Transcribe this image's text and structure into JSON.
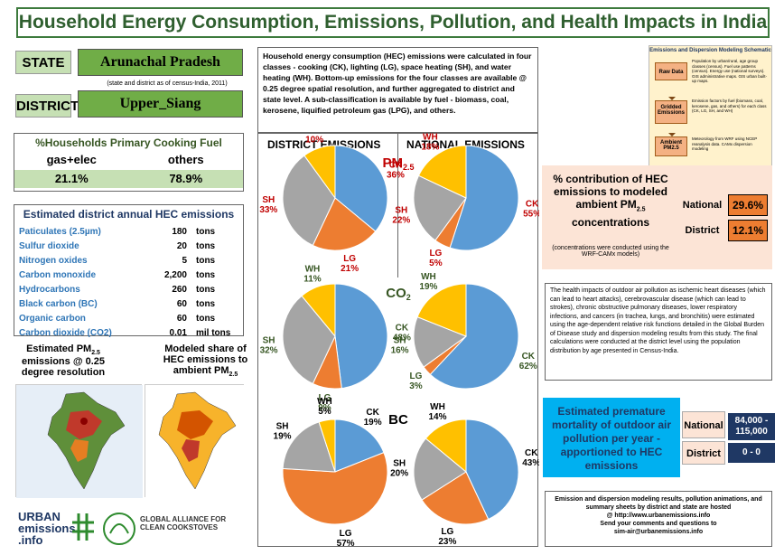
{
  "title": "Household Energy Consumption, Emissions, Pollution, and Health Impacts in India",
  "state_label": "STATE",
  "state_value": "Arunachal Pradesh",
  "state_note": "(state and district as of census-India, 2011)",
  "district_label": "DISTRICT",
  "district_value": "Upper_Siang",
  "intro_text": "Household energy consumption (HEC) emissions were calculated in four classes - cooking (CK), lighting (LG), space heating (SH), and water heating (WH). Bottom-up emissions for the four classes  are available @ 0.25 degree spatial resolution, and further aggregated to district and state level. A sub-classification is available by fuel - biomass, coal, kerosene, liquified petroleum gas (LPG), and others.",
  "cooking_fuel": {
    "title": "%Households Primary Cooking Fuel",
    "col1": "gas+elec",
    "col2": "others",
    "val1": "21.1%",
    "val2": "78.9%"
  },
  "emissions": {
    "title": "Estimated district annual HEC emissions",
    "rows": [
      {
        "name": "Paticulates (2.5µm)",
        "value": "180",
        "unit": "tons"
      },
      {
        "name": "Sulfur dioxide",
        "value": "20",
        "unit": "tons"
      },
      {
        "name": "Nitrogen oxides",
        "value": "5",
        "unit": "tons"
      },
      {
        "name": "Carbon monoxide",
        "value": "2,200",
        "unit": "tons"
      },
      {
        "name": "Hydrocarbons",
        "value": "260",
        "unit": "tons"
      },
      {
        "name": "Black carbon (BC)",
        "value": "60",
        "unit": "tons"
      },
      {
        "name": "Organic carbon",
        "value": "60",
        "unit": "tons"
      },
      {
        "name": "Carbon dioxide (CO2)",
        "value": "0.01",
        "unit": "mil tons"
      }
    ]
  },
  "map1_title_a": "Estimated PM",
  "map1_title_sub": "2.5",
  "map1_title_b": "emissions @ 0.25 degree resolution",
  "map2_title_a": "Modeled share of HEC emissions to ambient PM",
  "map2_title_sub": "2.5",
  "pies_header_district": "DISTRICT EMISSIONS",
  "pies_header_national": "NATIONAL EMISSIONS",
  "pie_rows": [
    {
      "label": "PM",
      "sub": "2.5"
    },
    {
      "label": "CO",
      "sub": "2"
    },
    {
      "label": "BC",
      "sub": ""
    }
  ],
  "chart_data": [
    {
      "type": "pie",
      "scope": "district",
      "pollutant": "PM2.5",
      "labels": [
        "CK",
        "LG",
        "SH",
        "WH"
      ],
      "values": [
        36,
        21,
        33,
        10
      ]
    },
    {
      "type": "pie",
      "scope": "national",
      "pollutant": "PM2.5",
      "labels": [
        "CK",
        "LG",
        "SH",
        "WH"
      ],
      "values": [
        55,
        5,
        22,
        18
      ]
    },
    {
      "type": "pie",
      "scope": "district",
      "pollutant": "CO2",
      "labels": [
        "CK",
        "LG",
        "SH",
        "WH"
      ],
      "values": [
        48,
        9,
        32,
        11
      ]
    },
    {
      "type": "pie",
      "scope": "national",
      "pollutant": "CO2",
      "labels": [
        "CK",
        "LG",
        "SH",
        "WH"
      ],
      "values": [
        62,
        3,
        16,
        19
      ]
    },
    {
      "type": "pie",
      "scope": "district",
      "pollutant": "BC",
      "labels": [
        "CK",
        "LG",
        "SH",
        "WH"
      ],
      "values": [
        19,
        57,
        19,
        5
      ]
    },
    {
      "type": "pie",
      "scope": "national",
      "pollutant": "BC",
      "labels": [
        "CK",
        "LG",
        "SH",
        "WH"
      ],
      "values": [
        43,
        23,
        20,
        14
      ]
    }
  ],
  "colors": {
    "CK": "#5b9bd5",
    "LG": "#ed7d31",
    "SH": "#a5a5a5",
    "WH": "#ffc000"
  },
  "label_colors": {
    "CK": "#c00000",
    "LG": "#c00000",
    "SH": "#c00000",
    "WH": "#c00000"
  },
  "modeling_schematic": {
    "title": "Emissions and Dispersion Modeling Schematic",
    "box1": "Raw Data",
    "box2": "Gridded Emissions",
    "box3": "Ambient PM2.5",
    "note1": "Population by urban/rural, age group classes (census). Fuel use patterns (census). Energy use (national surveys). GIS administrative maps. GIS urban built-up maps.",
    "note2": "Emission factors by fuel (biomass, coal, kerosene, gas, and others) for each class (CK, LG, SH, and WH)",
    "note3": "Meteorology from WRF using NCEP reanalysis data. CAMx dispersion modeling"
  },
  "contribution": {
    "title_a": "% contribution of HEC emissions to modeled ambient PM",
    "title_sub": "2.5",
    "title_b": " concentrations",
    "note": "(concentrations were conducted using the WRF-CAMx models)",
    "national_label": "National",
    "national_value": "29.6%",
    "district_label": "District",
    "district_value": "12.1%"
  },
  "health_text": "The health impacts of outdoor air pollution as ischemic heart diseases (which can lead to heart attacks), cerebrovascular disease (which can lead to strokes), chronic obstructive pulmonary diseases, lower respiratory infections, and cancers (in trachea, lungs, and bronchitis) were estimated using the age-dependent relative risk functions detailed in the Global Burden of Disease study and dispersion modeling results from this study. The final calculations were conducted at the district level using the population distribution by age presented in Census-India.",
  "mortality": {
    "title": "Estimated premature mortality of outdoor air pollution per year - apportioned to HEC emissions",
    "national_label": "National",
    "national_value": "84,000 - 115,000",
    "district_label": "District",
    "district_value": "0 - 0"
  },
  "footer": {
    "line1": "Emission and dispersion modeling results, pollution animations, and summary sheets by district and state are hosted",
    "line2": "@ http://www.urbanemissions.info",
    "line3": "Send your comments and questions to",
    "line4": "sim-air@urbanemissions.info"
  },
  "logo1": "URBAN emissions .info",
  "logo2": "GLOBAL ALLIANCE FOR CLEAN COOKSTOVES"
}
